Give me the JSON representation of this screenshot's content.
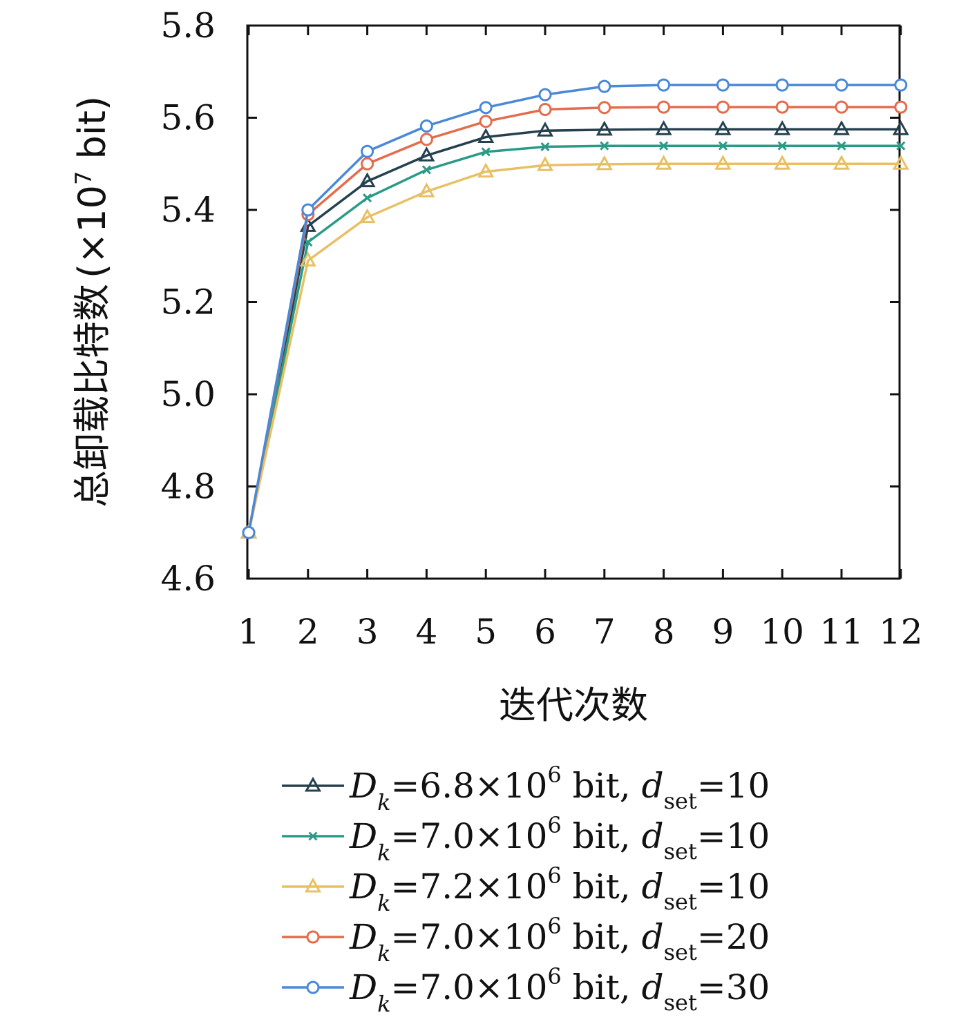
{
  "chart_data": {
    "type": "line",
    "ylabel_main": "总卸载比特数",
    "ylabel_unit_open": "(×10",
    "ylabel_unit_exp": "7",
    "ylabel_unit_close": " bit)",
    "xlabel": "迭代次数",
    "x": [
      1,
      2,
      3,
      4,
      5,
      6,
      7,
      8,
      9,
      10,
      11,
      12
    ],
    "ylim": [
      4.6,
      5.8
    ],
    "yticks": [
      "4.6",
      "4.8",
      "5.0",
      "5.2",
      "5.4",
      "5.6",
      "5.8"
    ],
    "xticks": [
      "1",
      "2",
      "3",
      "4",
      "5",
      "6",
      "7",
      "8",
      "9",
      "10",
      "11",
      "12"
    ],
    "grid": false,
    "legend_position": "bottom",
    "series": [
      {
        "color": "#25404f",
        "marker": "triangle-open",
        "legend": {
          "D": "D",
          "k": "k",
          "eq1": "=6.8×10",
          "exp": "6",
          "unit": " bit, ",
          "d": "d",
          "set": "set",
          "eq2": "=10"
        },
        "values": [
          4.7,
          5.365,
          5.462,
          5.518,
          5.558,
          5.572,
          5.574,
          5.575,
          5.575,
          5.575,
          5.575,
          5.575
        ]
      },
      {
        "color": "#2a9a87",
        "marker": "x",
        "legend": {
          "D": "D",
          "k": "k",
          "eq1": "=7.0×10",
          "exp": "6",
          "unit": " bit, ",
          "d": "d",
          "set": "set",
          "eq2": "=10"
        },
        "values": [
          4.7,
          5.33,
          5.426,
          5.487,
          5.526,
          5.537,
          5.539,
          5.539,
          5.539,
          5.539,
          5.539,
          5.539
        ]
      },
      {
        "color": "#e8c064",
        "marker": "triangle-open",
        "legend": {
          "D": "D",
          "k": "k",
          "eq1": "=7.2×10",
          "exp": "6",
          "unit": " bit, ",
          "d": "d",
          "set": "set",
          "eq2": "=10"
        },
        "values": [
          4.7,
          5.29,
          5.384,
          5.44,
          5.483,
          5.497,
          5.499,
          5.5,
          5.5,
          5.5,
          5.5,
          5.5
        ]
      },
      {
        "color": "#e46c4c",
        "marker": "circle-open",
        "legend": {
          "D": "D",
          "k": "k",
          "eq1": "=7.0×10",
          "exp": "6",
          "unit": " bit, ",
          "d": "d",
          "set": "set",
          "eq2": "=20"
        },
        "values": [
          4.7,
          5.39,
          5.5,
          5.553,
          5.592,
          5.618,
          5.622,
          5.623,
          5.623,
          5.623,
          5.623,
          5.623
        ]
      },
      {
        "color": "#4a88d8",
        "marker": "circle-open",
        "legend": {
          "D": "D",
          "k": "k",
          "eq1": "=7.0×10",
          "exp": "6",
          "unit": " bit, ",
          "d": "d",
          "set": "set",
          "eq2": "=30"
        },
        "values": [
          4.7,
          5.4,
          5.527,
          5.582,
          5.622,
          5.65,
          5.668,
          5.671,
          5.671,
          5.671,
          5.671,
          5.671
        ]
      }
    ]
  }
}
